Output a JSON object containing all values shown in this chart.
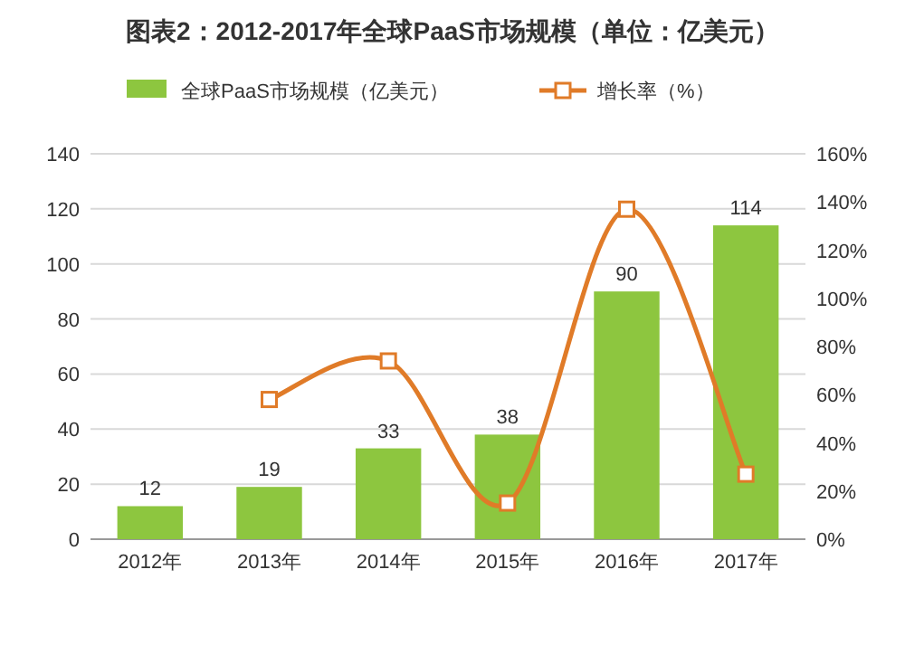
{
  "chart_data": {
    "type": "bar",
    "title": "图表2：2012-2017年全球PaaS市场规模（单位：亿美元）",
    "categories": [
      "2012年",
      "2013年",
      "2014年",
      "2015年",
      "2016年",
      "2017年"
    ],
    "series": [
      {
        "name": "全球PaaS市场规模（亿美元）",
        "color": "#8dc63f",
        "values": [
          12,
          19,
          33,
          38,
          90,
          114
        ],
        "value_labels": [
          "12",
          "19",
          "33",
          "38",
          "90",
          "114"
        ]
      },
      {
        "name": "增长率（%）",
        "type": "line",
        "axis": "y2",
        "color": "#e07b28",
        "marker": "square",
        "line_style": "solid",
        "values": [
          null,
          58,
          74,
          15,
          137,
          27
        ]
      }
    ],
    "ylim": [
      0,
      140
    ],
    "yticks": [
      0,
      20,
      40,
      60,
      80,
      100,
      120,
      140
    ],
    "y2lim": [
      0,
      160
    ],
    "y2ticks": [
      {
        "value": 0,
        "label": "0%"
      },
      {
        "value": 20,
        "label": "20%"
      },
      {
        "value": 40,
        "label": "40%"
      },
      {
        "value": 60,
        "label": "60%"
      },
      {
        "value": 80,
        "label": "80%"
      },
      {
        "value": 100,
        "label": "100%"
      },
      {
        "value": 120,
        "label": "120%"
      },
      {
        "value": 140,
        "label": "140%"
      },
      {
        "value": 160,
        "label": "160%"
      }
    ],
    "grid": "y",
    "legend": "top"
  }
}
